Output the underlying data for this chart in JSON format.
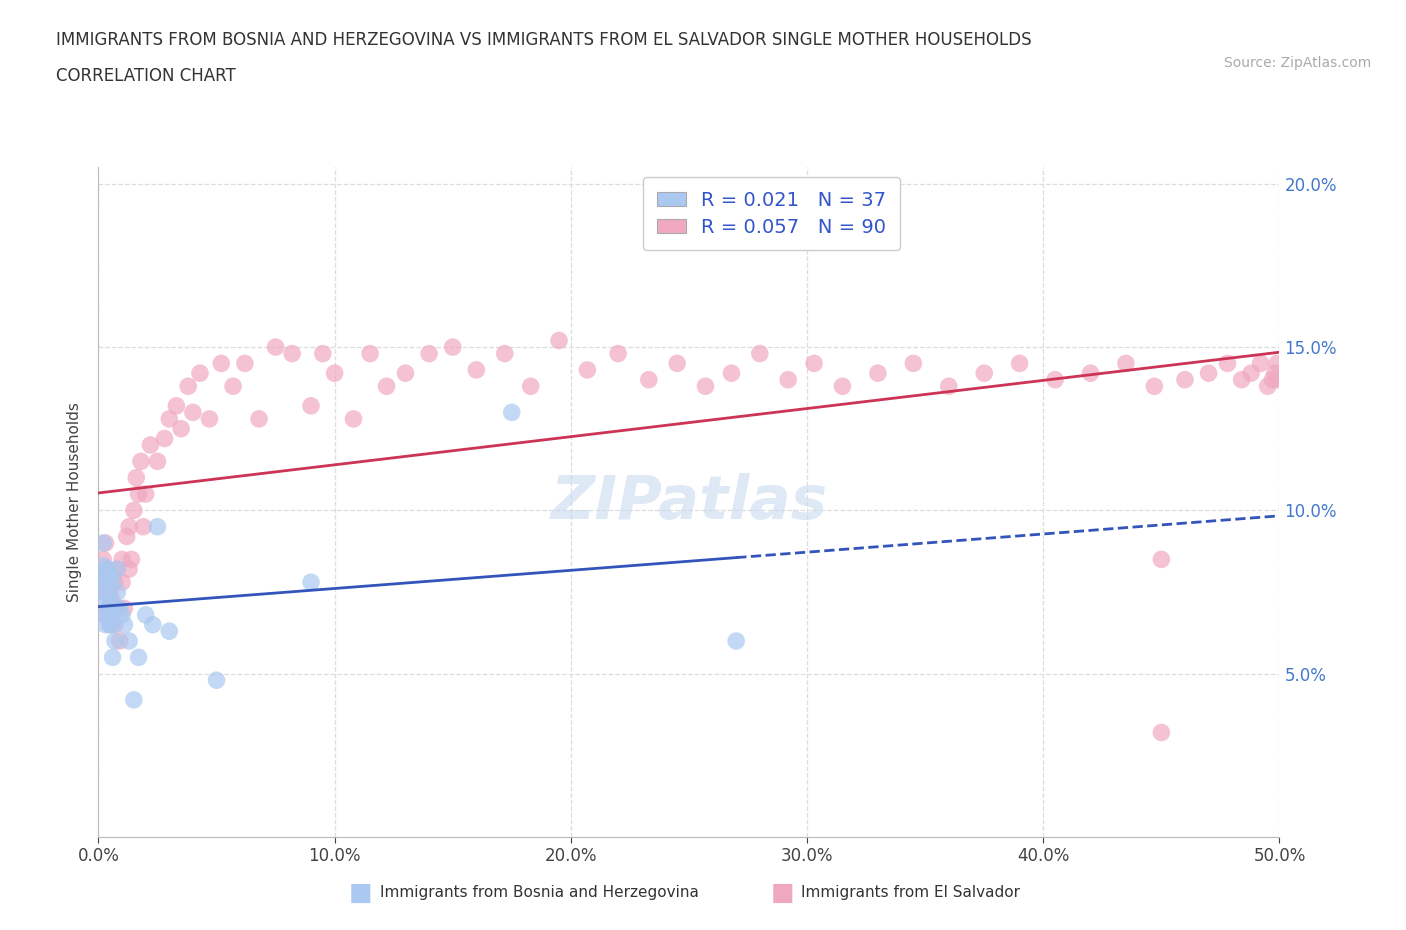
{
  "title_line1": "IMMIGRANTS FROM BOSNIA AND HERZEGOVINA VS IMMIGRANTS FROM EL SALVADOR SINGLE MOTHER HOUSEHOLDS",
  "title_line2": "CORRELATION CHART",
  "source": "Source: ZipAtlas.com",
  "ylabel": "Single Mother Households",
  "legend_bosnia_R": 0.021,
  "legend_bosnia_N": 37,
  "legend_salvador_R": 0.057,
  "legend_salvador_N": 90,
  "bosnia_color": "#aac8f0",
  "salvador_color": "#f0a8c0",
  "bosnia_line_color": "#3355bb",
  "salvador_line_color": "#cc3355",
  "xlim": [
    0.0,
    0.5
  ],
  "ylim": [
    0.0,
    0.205
  ],
  "xtick_labels": [
    "0.0%",
    "10.0%",
    "20.0%",
    "30.0%",
    "40.0%",
    "50.0%"
  ],
  "ytick_labels": [
    "",
    "5.0%",
    "10.0%",
    "15.0%",
    "20.0%"
  ],
  "background_color": "#ffffff",
  "grid_color": "#dddddd",
  "legend_label_1": "Immigrants from Bosnia and Herzegovina",
  "legend_label_2": "Immigrants from El Salvador",
  "bosnia_x": [
    0.001,
    0.001,
    0.002,
    0.002,
    0.002,
    0.003,
    0.003,
    0.003,
    0.003,
    0.004,
    0.004,
    0.004,
    0.005,
    0.005,
    0.005,
    0.005,
    0.006,
    0.006,
    0.006,
    0.007,
    0.007,
    0.008,
    0.008,
    0.009,
    0.01,
    0.011,
    0.013,
    0.015,
    0.017,
    0.02,
    0.023,
    0.025,
    0.03,
    0.05,
    0.09,
    0.175,
    0.27
  ],
  "bosnia_y": [
    0.08,
    0.075,
    0.083,
    0.068,
    0.09,
    0.082,
    0.078,
    0.072,
    0.065,
    0.082,
    0.075,
    0.07,
    0.068,
    0.08,
    0.065,
    0.072,
    0.078,
    0.065,
    0.055,
    0.07,
    0.06,
    0.082,
    0.075,
    0.07,
    0.068,
    0.065,
    0.06,
    0.042,
    0.055,
    0.068,
    0.065,
    0.095,
    0.063,
    0.048,
    0.078,
    0.13,
    0.06
  ],
  "salvador_x": [
    0.001,
    0.002,
    0.002,
    0.003,
    0.003,
    0.004,
    0.004,
    0.005,
    0.005,
    0.006,
    0.006,
    0.007,
    0.007,
    0.008,
    0.008,
    0.009,
    0.01,
    0.01,
    0.011,
    0.012,
    0.013,
    0.013,
    0.014,
    0.015,
    0.016,
    0.017,
    0.018,
    0.019,
    0.02,
    0.022,
    0.025,
    0.028,
    0.03,
    0.033,
    0.035,
    0.038,
    0.04,
    0.043,
    0.047,
    0.052,
    0.057,
    0.062,
    0.068,
    0.075,
    0.082,
    0.09,
    0.095,
    0.1,
    0.108,
    0.115,
    0.122,
    0.13,
    0.14,
    0.15,
    0.16,
    0.172,
    0.183,
    0.195,
    0.207,
    0.22,
    0.233,
    0.245,
    0.257,
    0.268,
    0.28,
    0.292,
    0.303,
    0.315,
    0.33,
    0.345,
    0.36,
    0.375,
    0.39,
    0.405,
    0.42,
    0.435,
    0.447,
    0.46,
    0.47,
    0.478,
    0.484,
    0.488,
    0.492,
    0.495,
    0.497,
    0.498,
    0.499,
    0.499,
    0.45,
    0.45
  ],
  "salvador_y": [
    0.08,
    0.085,
    0.075,
    0.068,
    0.09,
    0.082,
    0.07,
    0.075,
    0.065,
    0.08,
    0.072,
    0.078,
    0.065,
    0.082,
    0.07,
    0.06,
    0.085,
    0.078,
    0.07,
    0.092,
    0.082,
    0.095,
    0.085,
    0.1,
    0.11,
    0.105,
    0.115,
    0.095,
    0.105,
    0.12,
    0.115,
    0.122,
    0.128,
    0.132,
    0.125,
    0.138,
    0.13,
    0.142,
    0.128,
    0.145,
    0.138,
    0.145,
    0.128,
    0.15,
    0.148,
    0.132,
    0.148,
    0.142,
    0.128,
    0.148,
    0.138,
    0.142,
    0.148,
    0.15,
    0.143,
    0.148,
    0.138,
    0.152,
    0.143,
    0.148,
    0.14,
    0.145,
    0.138,
    0.142,
    0.148,
    0.14,
    0.145,
    0.138,
    0.142,
    0.145,
    0.138,
    0.142,
    0.145,
    0.14,
    0.142,
    0.145,
    0.138,
    0.14,
    0.142,
    0.145,
    0.14,
    0.142,
    0.145,
    0.138,
    0.14,
    0.142,
    0.145,
    0.14,
    0.032,
    0.085
  ]
}
